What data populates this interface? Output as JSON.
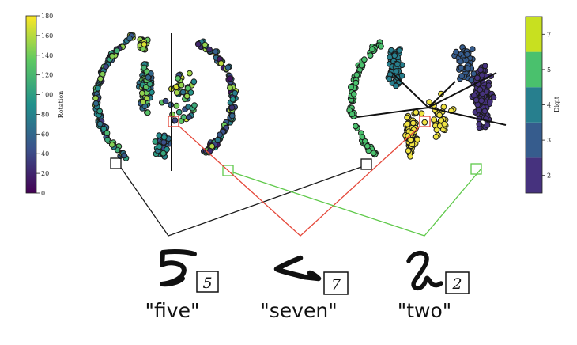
{
  "chart_data": [
    {
      "type": "scatter",
      "panel": "left",
      "colorbar": {
        "label": "Rotation",
        "range": [
          0,
          180
        ],
        "ticks": [
          0,
          20,
          40,
          60,
          80,
          100,
          120,
          140,
          160,
          180
        ],
        "colormap": "viridis"
      }
    },
    {
      "type": "scatter",
      "panel": "right",
      "colorbar": {
        "label": "Digit",
        "categories": [
          2,
          3,
          4,
          5,
          7
        ],
        "colormap": "viridis"
      }
    }
  ],
  "words": [
    "\"five\"",
    "\"seven\"",
    "\"two\""
  ],
  "digit_boxes": [
    "5",
    "7",
    "2"
  ],
  "colors": {
    "five_link": "#1a1a1a",
    "seven_link": "#e5483a",
    "two_link": "#5fc94a",
    "viridis": [
      "#440154",
      "#3b528b",
      "#21918c",
      "#5ec962",
      "#fde725"
    ],
    "digit_colors": [
      "#46327e",
      "#365c8d",
      "#277f8e",
      "#4ac16d",
      "#c8e020"
    ]
  }
}
